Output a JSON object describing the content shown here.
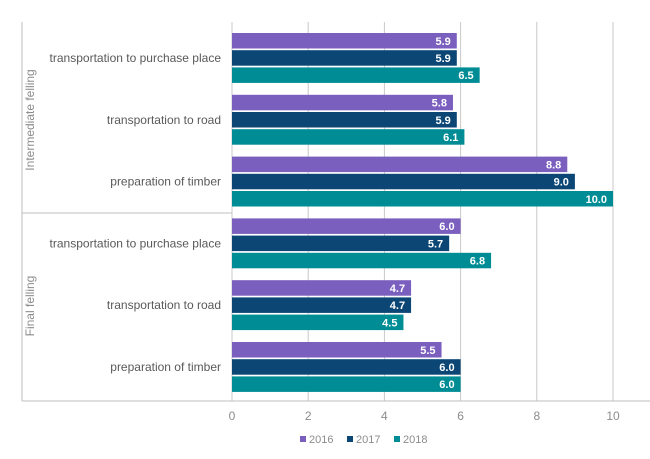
{
  "chart_data": {
    "type": "bar",
    "orientation": "horizontal",
    "groups": [
      {
        "label": "Intermediate felling",
        "categories": [
          "transportation to purchase place",
          "transportation to road",
          "preparation of timber"
        ]
      },
      {
        "label": "Final felling",
        "categories": [
          "transportation to purchase place",
          "transportation to road",
          "preparation of timber"
        ]
      }
    ],
    "series": [
      {
        "name": "2016",
        "color": "#7a5fbf",
        "values": [
          5.9,
          5.8,
          8.8,
          6.0,
          4.7,
          5.5
        ],
        "labels": [
          "5.9",
          "5.8",
          "8.8",
          "6.0",
          "4.7",
          "5.5"
        ]
      },
      {
        "name": "2017",
        "color": "#0b4674",
        "values": [
          5.9,
          5.9,
          9.0,
          5.7,
          4.7,
          6.0
        ],
        "labels": [
          "5.9",
          "5.9",
          "9.0",
          "5.7",
          "4.7",
          "6.0"
        ]
      },
      {
        "name": "2018",
        "color": "#008c95",
        "values": [
          6.5,
          6.1,
          10.0,
          6.8,
          4.5,
          6.0
        ],
        "labels": [
          "6.5",
          "6.1",
          "10.0",
          "6.8",
          "4.5",
          "6.0"
        ]
      }
    ],
    "xlim": [
      0,
      11
    ],
    "xticks": [
      "0",
      "2",
      "4",
      "6",
      "8",
      "10"
    ],
    "grid": true,
    "legend_position": "bottom"
  }
}
